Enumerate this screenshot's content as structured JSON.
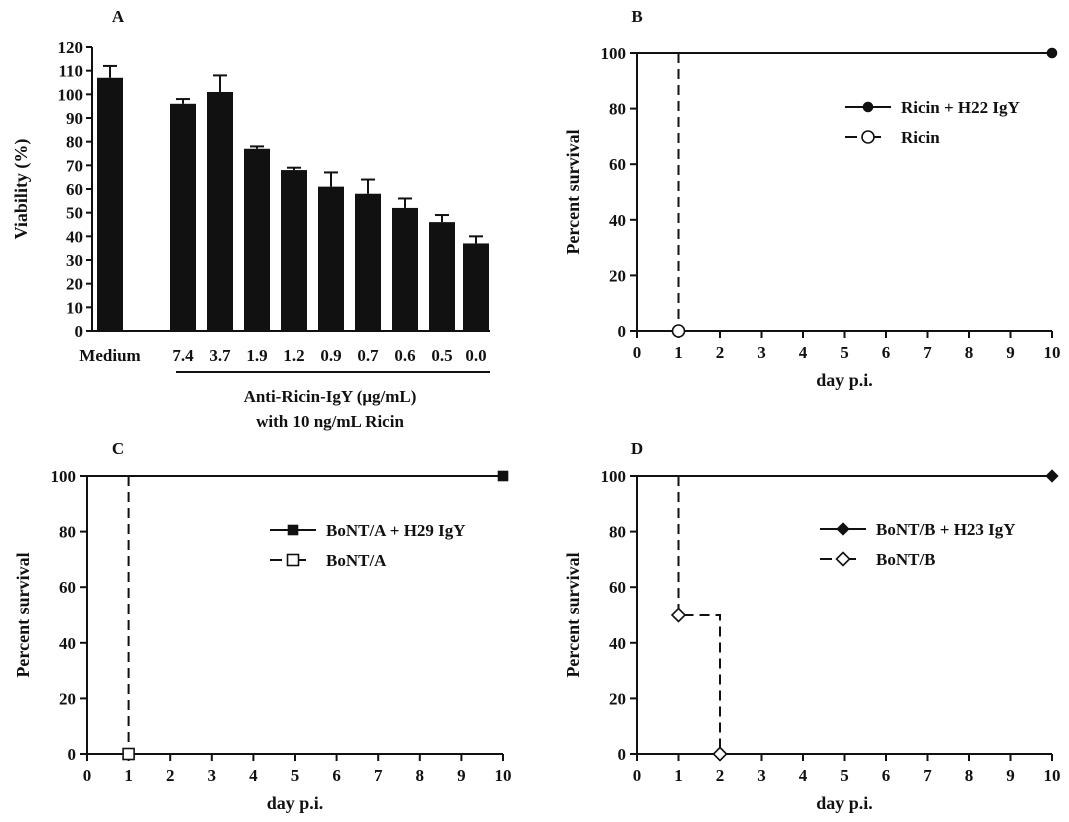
{
  "chart_data": [
    {
      "panel": "A",
      "type": "bar",
      "title": "",
      "ylabel": "Viability (%)",
      "xlabel": "Anti-Ricin-IgY (μg/mL)",
      "xlabel_line2": "with 10 ng/mL Ricin",
      "ylim": [
        0,
        120
      ],
      "yticks": [
        0,
        10,
        20,
        30,
        40,
        50,
        60,
        70,
        80,
        90,
        100,
        110,
        120
      ],
      "categories": [
        "Medium",
        "7.4",
        "3.7",
        "1.9",
        "1.2",
        "0.9",
        "0.7",
        "0.6",
        "0.5",
        "0.0"
      ],
      "values": [
        107,
        96,
        101,
        77,
        68,
        61,
        58,
        52,
        46,
        37
      ],
      "errors": [
        5,
        2,
        7,
        1,
        1,
        6,
        6,
        4,
        3,
        3
      ],
      "bar_color": "#111111"
    },
    {
      "panel": "B",
      "type": "line",
      "xlabel": "day p.i.",
      "ylabel": "Percent survival",
      "xlim": [
        0,
        10
      ],
      "ylim": [
        0,
        100
      ],
      "xticks": [
        0,
        1,
        2,
        3,
        4,
        5,
        6,
        7,
        8,
        9,
        10
      ],
      "yticks": [
        0,
        20,
        40,
        60,
        80,
        100
      ],
      "legend_position": "top-right",
      "series": [
        {
          "name": "Ricin + H22 IgY",
          "marker": "filled-circle",
          "dashed": false,
          "x": [
            0,
            10
          ],
          "y": [
            100,
            100
          ]
        },
        {
          "name": "Ricin",
          "marker": "open-circle",
          "dashed": true,
          "x": [
            1,
            1
          ],
          "y": [
            100,
            0
          ]
        }
      ]
    },
    {
      "panel": "C",
      "type": "line",
      "xlabel": "day p.i.",
      "ylabel": "Percent survival",
      "xlim": [
        0,
        10
      ],
      "ylim": [
        0,
        100
      ],
      "xticks": [
        0,
        1,
        2,
        3,
        4,
        5,
        6,
        7,
        8,
        9,
        10
      ],
      "yticks": [
        0,
        20,
        40,
        60,
        80,
        100
      ],
      "legend_position": "center-right",
      "series": [
        {
          "name": "BoNT/A + H29 IgY",
          "marker": "filled-square",
          "dashed": false,
          "x": [
            0,
            10
          ],
          "y": [
            100,
            100
          ]
        },
        {
          "name": "BoNT/A",
          "marker": "open-square",
          "dashed": true,
          "x": [
            1,
            1
          ],
          "y": [
            100,
            0
          ]
        }
      ]
    },
    {
      "panel": "D",
      "type": "line",
      "xlabel": "day p.i.",
      "ylabel": "Percent survival",
      "xlim": [
        0,
        10
      ],
      "ylim": [
        0,
        100
      ],
      "xticks": [
        0,
        1,
        2,
        3,
        4,
        5,
        6,
        7,
        8,
        9,
        10
      ],
      "yticks": [
        0,
        20,
        40,
        60,
        80,
        100
      ],
      "legend_position": "top-right",
      "series": [
        {
          "name": "BoNT/B + H23 IgY",
          "marker": "filled-diamond",
          "dashed": false,
          "x": [
            0,
            10
          ],
          "y": [
            100,
            100
          ]
        },
        {
          "name": "BoNT/B",
          "marker": "open-diamond",
          "dashed": true,
          "x": [
            1,
            1,
            2,
            2
          ],
          "y": [
            100,
            50,
            50,
            0
          ]
        }
      ]
    }
  ]
}
